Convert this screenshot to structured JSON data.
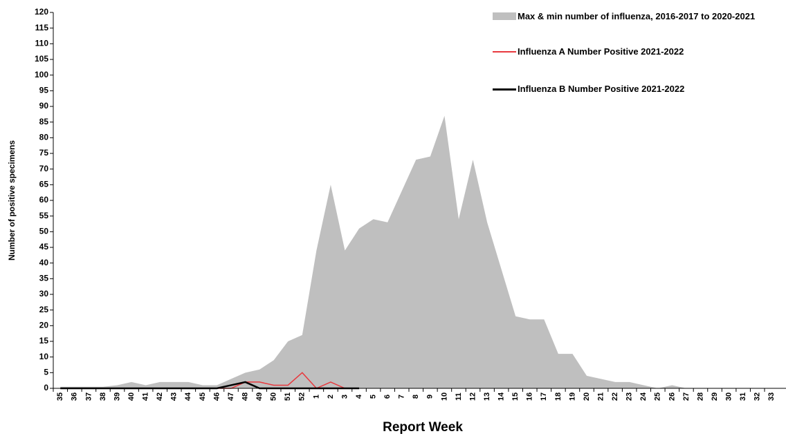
{
  "chart_data": {
    "type": "area",
    "y_label": "Number of positive specimens",
    "x_label": "Report Week",
    "categories": [
      "35",
      "36",
      "37",
      "38",
      "39",
      "40",
      "41",
      "42",
      "43",
      "44",
      "45",
      "46",
      "47",
      "48",
      "49",
      "50",
      "51",
      "52",
      "1",
      "2",
      "3",
      "4",
      "5",
      "6",
      "7",
      "8",
      "9",
      "10",
      "11",
      "12",
      "13",
      "14",
      "15",
      "16",
      "17",
      "18",
      "19",
      "20",
      "21",
      "22",
      "23",
      "24",
      "25",
      "26",
      "27",
      "28",
      "29",
      "30",
      "31",
      "32",
      "33"
    ],
    "ylim": [
      0,
      120
    ],
    "yticks": [
      0,
      5,
      10,
      15,
      20,
      25,
      30,
      35,
      40,
      45,
      50,
      55,
      60,
      65,
      70,
      75,
      80,
      85,
      90,
      95,
      100,
      105,
      110,
      115,
      120
    ],
    "series": [
      {
        "name": "Max & min number of influenza, 2016-2017 to 2020-2021",
        "color": "#bfbfbf",
        "kind": "area",
        "values": [
          0.5,
          0.5,
          0.5,
          0.5,
          1,
          2,
          1,
          2,
          2,
          2,
          1,
          1,
          3,
          5,
          6,
          9,
          15,
          17,
          44,
          65,
          44,
          51,
          54,
          53,
          63,
          73,
          74,
          87,
          54,
          73,
          53,
          38,
          23,
          22,
          22,
          11,
          11,
          4,
          3,
          2,
          2,
          1,
          0,
          1,
          0,
          0,
          0,
          0,
          0,
          0,
          0
        ]
      },
      {
        "name": "Influenza A Number Positive 2021-2022",
        "color": "#e8383d",
        "kind": "line",
        "width": 1.5,
        "values": [
          0,
          0,
          0,
          0,
          0,
          0,
          0,
          0,
          0,
          0,
          0,
          0,
          0,
          2,
          2,
          1,
          1,
          5,
          0,
          2,
          0,
          null,
          null,
          null,
          null,
          null,
          null,
          null,
          null,
          null,
          null,
          null,
          null,
          null,
          null,
          null,
          null,
          null,
          null,
          null,
          null,
          null,
          null,
          null,
          null,
          null,
          null,
          null,
          null,
          null,
          null
        ]
      },
      {
        "name": "Influenza B Number Positive 2021-2022",
        "color": "#000000",
        "kind": "line",
        "width": 2.5,
        "values": [
          0,
          0,
          0,
          0,
          0,
          0,
          0,
          0,
          0,
          0,
          0,
          0,
          1,
          2,
          0,
          0,
          0,
          0,
          0,
          0,
          0,
          0,
          null,
          null,
          null,
          null,
          null,
          null,
          null,
          null,
          null,
          null,
          null,
          null,
          null,
          null,
          null,
          null,
          null,
          null,
          null,
          null,
          null,
          null,
          null,
          null,
          null,
          null,
          null,
          null,
          null
        ]
      }
    ]
  }
}
